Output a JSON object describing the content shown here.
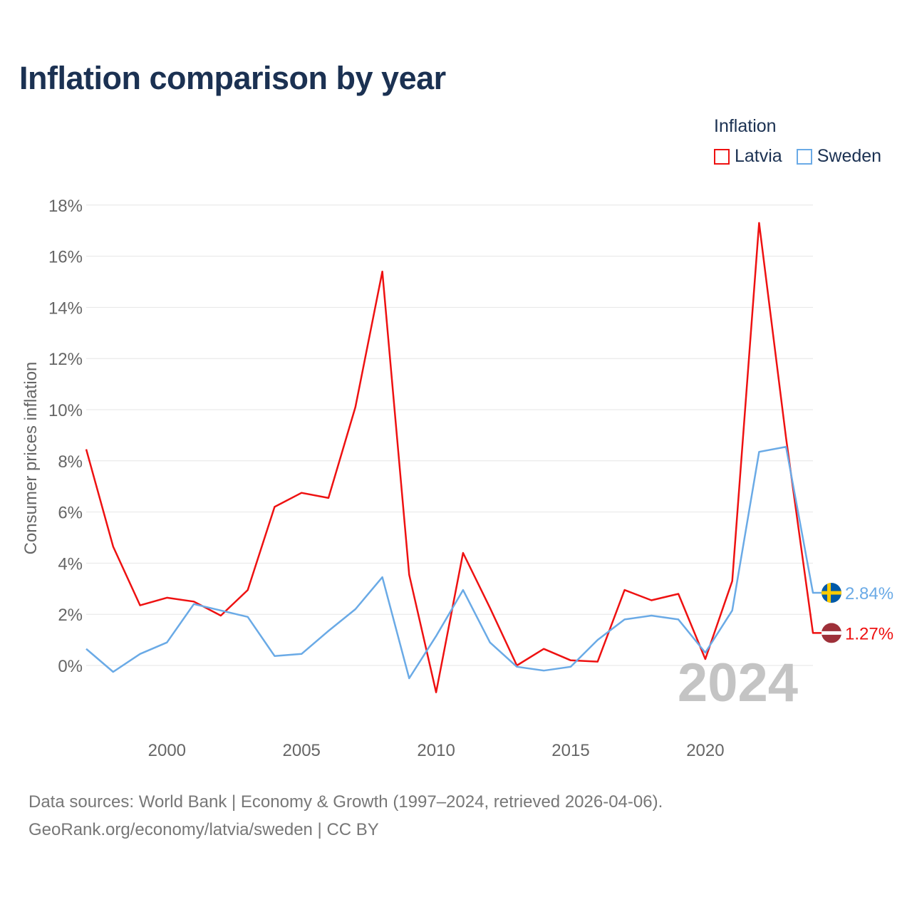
{
  "title": "Inflation comparison by year",
  "legend": {
    "title": "Inflation",
    "items": [
      {
        "name": "Latvia",
        "color": "#ee1111"
      },
      {
        "name": "Sweden",
        "color": "#6aaae6"
      }
    ]
  },
  "footer": {
    "line1": "Data sources: World Bank | Economy & Growth (1997–2024, retrieved 2026-04-06).",
    "line2": "GeoRank.org/economy/latvia/sweden | CC BY"
  },
  "chart_data": {
    "type": "line",
    "title": "Inflation comparison by year",
    "xlabel": "",
    "ylabel": "Consumer prices inflation",
    "x": [
      1997,
      1998,
      1999,
      2000,
      2001,
      2002,
      2003,
      2004,
      2005,
      2006,
      2007,
      2008,
      2009,
      2010,
      2011,
      2012,
      2013,
      2014,
      2015,
      2016,
      2017,
      2018,
      2019,
      2020,
      2021,
      2022,
      2023,
      2024
    ],
    "xlim": [
      1997,
      2024
    ],
    "ylim": [
      -2,
      18
    ],
    "x_ticks": [
      2000,
      2005,
      2010,
      2015,
      2020
    ],
    "x_tick_labels": [
      "2000",
      "2005",
      "2010",
      "2015",
      "2020"
    ],
    "y_ticks": [
      0,
      2,
      4,
      6,
      8,
      10,
      12,
      14,
      16,
      18
    ],
    "y_tick_labels": [
      "0%",
      "2%",
      "4%",
      "6%",
      "8%",
      "10%",
      "12%",
      "14%",
      "16%",
      "18%"
    ],
    "grid": true,
    "legend_position": "top-right",
    "year_watermark": "2024",
    "series": [
      {
        "name": "Latvia",
        "color": "#ee1111",
        "flag": "latvia-flag",
        "end_label": "1.27%",
        "values": [
          8.45,
          4.65,
          2.35,
          2.65,
          2.5,
          1.95,
          2.95,
          6.2,
          6.75,
          6.55,
          10.1,
          15.4,
          3.55,
          -1.05,
          4.4,
          2.25,
          0.0,
          0.65,
          0.2,
          0.15,
          2.95,
          2.55,
          2.8,
          0.25,
          3.3,
          17.3,
          8.9,
          1.27
        ]
      },
      {
        "name": "Sweden",
        "color": "#6aaae6",
        "flag": "sweden-flag",
        "end_label": "2.84%",
        "values": [
          0.65,
          -0.25,
          0.45,
          0.9,
          2.4,
          2.15,
          1.9,
          0.37,
          0.45,
          1.35,
          2.2,
          3.45,
          -0.5,
          1.15,
          2.95,
          0.9,
          -0.05,
          -0.2,
          -0.05,
          1.0,
          1.8,
          1.95,
          1.8,
          0.5,
          2.15,
          8.35,
          8.55,
          2.84
        ]
      }
    ]
  }
}
